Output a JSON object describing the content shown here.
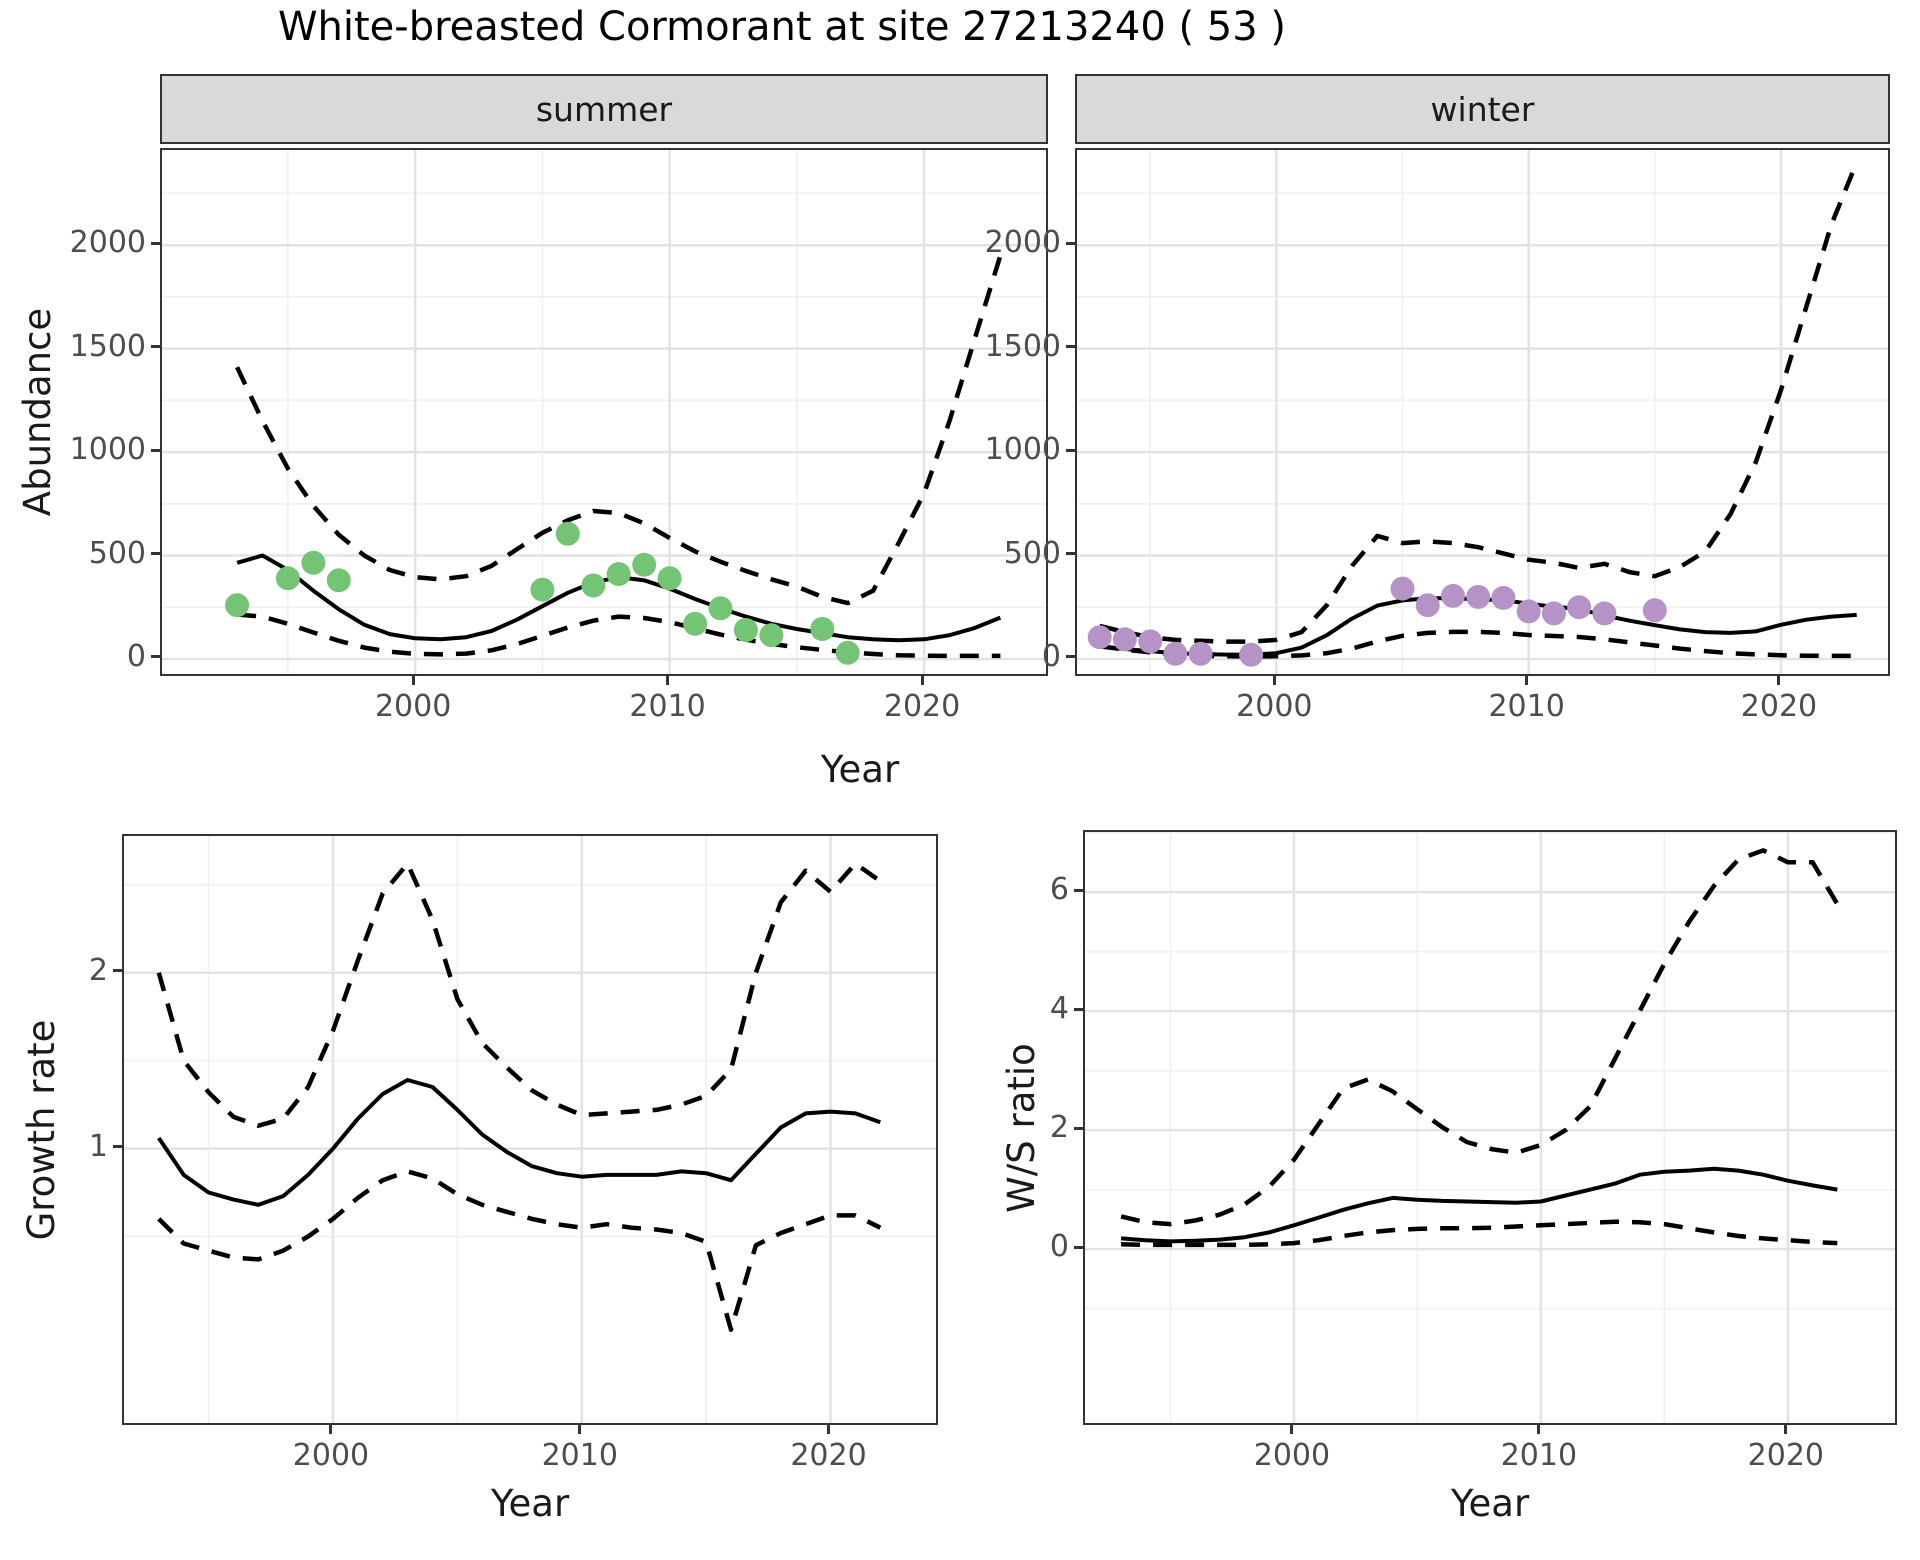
{
  "title": "White-breasted Cormorant at site 27213240 ( 53 )",
  "facets": [
    "summer",
    "winter"
  ],
  "axis_labels": {
    "year": "Year",
    "abundance": "Abundance",
    "growth_rate": "Growth rate",
    "ws_ratio": "W/S ratio"
  },
  "colors": {
    "summer_points": "#74c476",
    "winter_points": "#b593c6",
    "fit_line": "#000000",
    "ci_line": "#000000",
    "strip_bg": "#d9d9d9",
    "grid_major": "#e3e3e3",
    "grid_minor": "#f1f1f1",
    "axis_text": "#4d4d4d",
    "panel_border": "#333333"
  },
  "chart_data": [
    {
      "type": "line",
      "facet": "summer",
      "ylabel": "Abundance",
      "xlabel": "Year",
      "xlim": [
        1990.05,
        2024.95
      ],
      "ylim": [
        -92,
        2460
      ],
      "x_ticks": [
        2000,
        2010,
        2020
      ],
      "x_minor": [
        1995,
        2005,
        2015
      ],
      "y_ticks": [
        0,
        500,
        1000,
        1500,
        2000
      ],
      "y_minor": [
        250,
        750,
        1250,
        1750,
        2250
      ],
      "points": {
        "color": "#74c476",
        "years": [
          1993,
          1995,
          1996,
          1997,
          2005,
          2006,
          2007,
          2008,
          2009,
          2010,
          2011,
          2012,
          2013,
          2014,
          2016,
          2017
        ],
        "values": [
          260,
          390,
          465,
          380,
          335,
          605,
          355,
          410,
          455,
          390,
          170,
          245,
          140,
          115,
          145,
          30
        ]
      },
      "series": [
        {
          "name": "fit",
          "style": "solid",
          "years_from": 1993,
          "values": [
            465,
            500,
            430,
            330,
            240,
            165,
            120,
            100,
            95,
            105,
            135,
            190,
            255,
            320,
            370,
            395,
            380,
            340,
            290,
            245,
            205,
            170,
            145,
            125,
            105,
            95,
            90,
            95,
            115,
            150,
            200
          ]
        },
        {
          "name": "upper95",
          "style": "dashed",
          "years_from": 1993,
          "values": [
            1410,
            1150,
            920,
            740,
            600,
            500,
            430,
            395,
            385,
            400,
            450,
            530,
            610,
            670,
            715,
            705,
            655,
            585,
            520,
            470,
            425,
            385,
            350,
            300,
            270,
            330,
            560,
            800,
            1150,
            1550,
            1950
          ]
        },
        {
          "name": "lower95",
          "style": "dashed",
          "years_from": 1993,
          "values": [
            215,
            205,
            170,
            128,
            88,
            55,
            35,
            25,
            22,
            26,
            42,
            72,
            112,
            152,
            185,
            205,
            198,
            178,
            148,
            118,
            93,
            73,
            57,
            44,
            32,
            24,
            18,
            16,
            15,
            15,
            15
          ]
        }
      ]
    },
    {
      "type": "line",
      "facet": "winter",
      "ylabel": "Abundance",
      "xlabel": "Year",
      "xlim": [
        1992.1,
        2024.4
      ],
      "ylim": [
        -92,
        2460
      ],
      "x_ticks": [
        2000,
        2010,
        2020
      ],
      "x_minor": [
        1995,
        2005,
        2015
      ],
      "y_ticks": [
        0,
        500,
        1000,
        1500,
        2000
      ],
      "y_minor": [
        250,
        750,
        1250,
        1750,
        2250
      ],
      "points": {
        "color": "#b593c6",
        "years": [
          1993,
          1994,
          1995,
          1996,
          1997,
          1999,
          2005,
          2006,
          2007,
          2008,
          2009,
          2010,
          2011,
          2012,
          2013,
          2015
        ],
        "values": [
          105,
          95,
          85,
          25,
          25,
          20,
          340,
          260,
          305,
          300,
          295,
          230,
          220,
          250,
          220,
          235
        ]
      },
      "series": [
        {
          "name": "fit",
          "style": "solid",
          "years_from": 1993,
          "values": [
            60,
            48,
            38,
            28,
            24,
            21,
            20,
            28,
            55,
            115,
            195,
            258,
            283,
            293,
            293,
            289,
            284,
            267,
            252,
            242,
            210,
            185,
            163,
            143,
            130,
            126,
            133,
            165,
            190,
            205,
            213
          ]
        },
        {
          "name": "upper95",
          "style": "dashed",
          "years_from": 1993,
          "values": [
            160,
            130,
            105,
            92,
            88,
            84,
            84,
            92,
            130,
            260,
            450,
            595,
            560,
            568,
            560,
            540,
            510,
            480,
            465,
            440,
            460,
            420,
            400,
            445,
            520,
            700,
            950,
            1300,
            1700,
            2100,
            2400
          ]
        },
        {
          "name": "lower95",
          "style": "dashed",
          "years_from": 1993,
          "values": [
            62,
            45,
            32,
            22,
            16,
            13,
            12,
            13,
            17,
            28,
            50,
            85,
            112,
            126,
            131,
            131,
            126,
            116,
            111,
            106,
            95,
            80,
            65,
            50,
            38,
            28,
            22,
            18,
            16,
            15,
            15
          ]
        }
      ]
    },
    {
      "type": "line",
      "facet": "",
      "ylabel": "Growth rate",
      "xlabel": "Year",
      "xlim": [
        1991.6,
        2024.4
      ],
      "ylim": [
        -0.583,
        2.777
      ],
      "x_ticks": [
        2000,
        2010,
        2020
      ],
      "x_minor": [
        1995,
        2005,
        2015
      ],
      "y_ticks": [
        1,
        2
      ],
      "y_minor": [
        0.5,
        1.5,
        2.5
      ],
      "series": [
        {
          "name": "fit",
          "style": "solid",
          "years_from": 1993,
          "values": [
            1.06,
            0.85,
            0.75,
            0.71,
            0.68,
            0.73,
            0.85,
            1.0,
            1.17,
            1.31,
            1.39,
            1.35,
            1.22,
            1.08,
            0.98,
            0.9,
            0.86,
            0.84,
            0.85,
            0.85,
            0.85,
            0.87,
            0.86,
            0.82,
            0.97,
            1.12,
            1.2,
            1.21,
            1.2,
            1.15
          ]
        },
        {
          "name": "upper95",
          "style": "dashed",
          "years_from": 1993,
          "values": [
            2.0,
            1.5,
            1.32,
            1.18,
            1.13,
            1.17,
            1.35,
            1.67,
            2.07,
            2.45,
            2.62,
            2.3,
            1.85,
            1.6,
            1.46,
            1.33,
            1.25,
            1.19,
            1.2,
            1.21,
            1.22,
            1.25,
            1.3,
            1.45,
            2.0,
            2.4,
            2.58,
            2.46,
            2.62,
            2.52
          ]
        },
        {
          "name": "lower95",
          "style": "dashed",
          "years_from": 1993,
          "values": [
            0.6,
            0.46,
            0.42,
            0.38,
            0.37,
            0.42,
            0.5,
            0.6,
            0.72,
            0.82,
            0.87,
            0.83,
            0.74,
            0.68,
            0.64,
            0.6,
            0.57,
            0.55,
            0.57,
            0.55,
            0.54,
            0.52,
            0.47,
            -0.03,
            0.45,
            0.52,
            0.57,
            0.62,
            0.62,
            0.55
          ]
        }
      ]
    },
    {
      "type": "line",
      "facet": "",
      "ylabel": "W/S ratio",
      "xlabel": "Year",
      "xlim": [
        1991.54,
        2024.5
      ],
      "ylim": [
        -2.99,
        7.01
      ],
      "x_ticks": [
        2000,
        2010,
        2020
      ],
      "x_minor": [
        1995,
        2005,
        2015
      ],
      "y_ticks": [
        0,
        2,
        4,
        6
      ],
      "y_minor": [
        -1,
        1,
        3,
        5,
        7
      ],
      "series": [
        {
          "name": "fit",
          "style": "solid",
          "years_from": 1993,
          "values": [
            0.18,
            0.15,
            0.13,
            0.14,
            0.16,
            0.2,
            0.28,
            0.4,
            0.53,
            0.66,
            0.77,
            0.86,
            0.83,
            0.81,
            0.8,
            0.79,
            0.78,
            0.8,
            0.9,
            1.0,
            1.1,
            1.25,
            1.3,
            1.32,
            1.35,
            1.32,
            1.25,
            1.15,
            1.07,
            1.0
          ]
        },
        {
          "name": "upper95",
          "style": "dashed",
          "years_from": 1993,
          "values": [
            0.55,
            0.45,
            0.42,
            0.48,
            0.58,
            0.75,
            1.05,
            1.5,
            2.1,
            2.7,
            2.85,
            2.65,
            2.35,
            2.05,
            1.8,
            1.68,
            1.62,
            1.75,
            2.0,
            2.4,
            3.2,
            4.0,
            4.8,
            5.5,
            6.1,
            6.55,
            6.7,
            6.5,
            6.5,
            5.8
          ]
        },
        {
          "name": "lower95",
          "style": "dashed",
          "years_from": 1993,
          "values": [
            0.08,
            0.07,
            0.07,
            0.07,
            0.07,
            0.07,
            0.08,
            0.1,
            0.15,
            0.22,
            0.28,
            0.32,
            0.34,
            0.35,
            0.35,
            0.36,
            0.38,
            0.4,
            0.42,
            0.44,
            0.46,
            0.45,
            0.42,
            0.35,
            0.28,
            0.22,
            0.18,
            0.15,
            0.12,
            0.1
          ]
        }
      ]
    }
  ]
}
